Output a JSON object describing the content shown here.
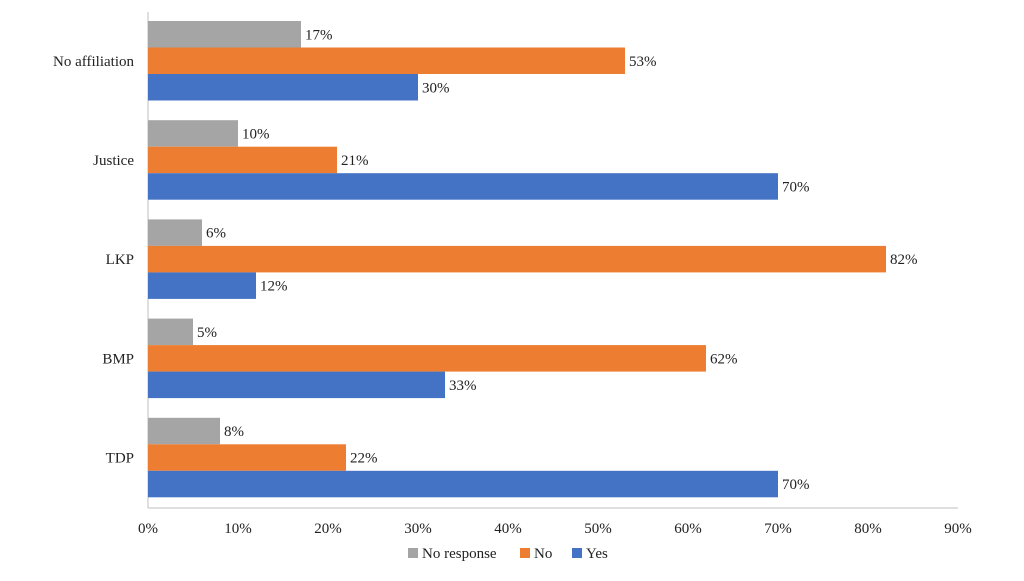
{
  "chart_data": {
    "type": "bar",
    "orientation": "horizontal",
    "categories": [
      "No affiliation",
      "Justice",
      "LKP",
      "BMP",
      "TDP"
    ],
    "series": [
      {
        "name": "No response",
        "color": "#a5a5a5",
        "values": [
          17,
          10,
          6,
          5,
          8
        ],
        "labels": [
          "17%",
          "10%",
          "6%",
          "5%",
          "8%"
        ]
      },
      {
        "name": "No",
        "color": "#ed7d31",
        "values": [
          53,
          21,
          82,
          62,
          22
        ],
        "labels": [
          "53%",
          "21%",
          "82%",
          "62%",
          "22%"
        ]
      },
      {
        "name": "Yes",
        "color": "#4472c4",
        "values": [
          30,
          70,
          12,
          33,
          70
        ],
        "labels": [
          "30%",
          "70%",
          "12%",
          "33%",
          "70%"
        ]
      }
    ],
    "xlim": [
      0,
      90
    ],
    "xticks": [
      0,
      10,
      20,
      30,
      40,
      50,
      60,
      70,
      80,
      90
    ],
    "xtick_labels": [
      "0%",
      "10%",
      "20%",
      "30%",
      "40%",
      "50%",
      "60%",
      "70%",
      "80%",
      "90%"
    ],
    "title": "",
    "xlabel": "",
    "ylabel": "",
    "grid": false,
    "legend_position": "bottom"
  }
}
